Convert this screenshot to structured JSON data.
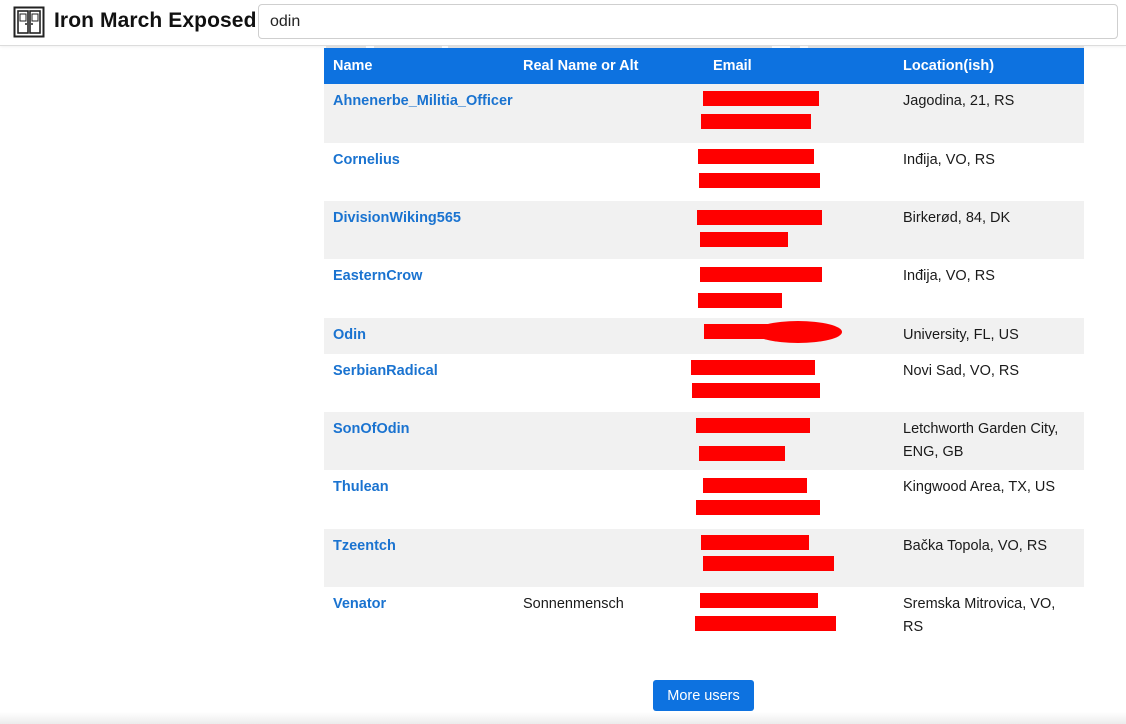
{
  "header": {
    "logo_icon": "open-door-icon",
    "title": "Iron March Exposed",
    "search_value": "odin",
    "search_placeholder": ""
  },
  "table": {
    "columns": [
      "Name",
      "Real Name or Alt",
      "Email",
      "Location(ish)"
    ],
    "rows": [
      {
        "name": "Ahnenerbe_Militia_Officer",
        "real_name": "",
        "email": "[redacted]",
        "location": "Jagodina, 21, RS"
      },
      {
        "name": "Cornelius",
        "real_name": "",
        "email": "[redacted]",
        "location": "Inđija, VO, RS"
      },
      {
        "name": "DivisionWiking565",
        "real_name": "",
        "email": "[redacted]",
        "location": "Birkerød, 84, DK"
      },
      {
        "name": "EasternCrow",
        "real_name": "",
        "email": "[redacted]",
        "location": "Inđija, VO, RS"
      },
      {
        "name": "Odin",
        "real_name": "",
        "email": "[redacted]",
        "location": "University, FL, US"
      },
      {
        "name": "SerbianRadical",
        "real_name": "",
        "email": "[redacted]",
        "location": "Novi Sad, VO, RS"
      },
      {
        "name": "SonOfOdin",
        "real_name": "",
        "email": "[redacted]",
        "location": "Letchworth Garden City, ENG, GB"
      },
      {
        "name": "Thulean",
        "real_name": "",
        "email": "[redacted]",
        "location": "Kingwood Area, TX, US"
      },
      {
        "name": "Tzeentch",
        "real_name": "",
        "email": "[redacted]",
        "location": "Bačka Topola, VO, RS"
      },
      {
        "name": "Venator",
        "real_name": "Sonnenmensch",
        "email": "[redacted]",
        "location": "Sremska Mitrovica, VO, RS"
      }
    ]
  },
  "more_button_label": "More users",
  "colors": {
    "accent": "#0d72e0",
    "link": "#1a73d0",
    "redaction": "#ff0000",
    "row_alt": "#f1f1f1"
  }
}
